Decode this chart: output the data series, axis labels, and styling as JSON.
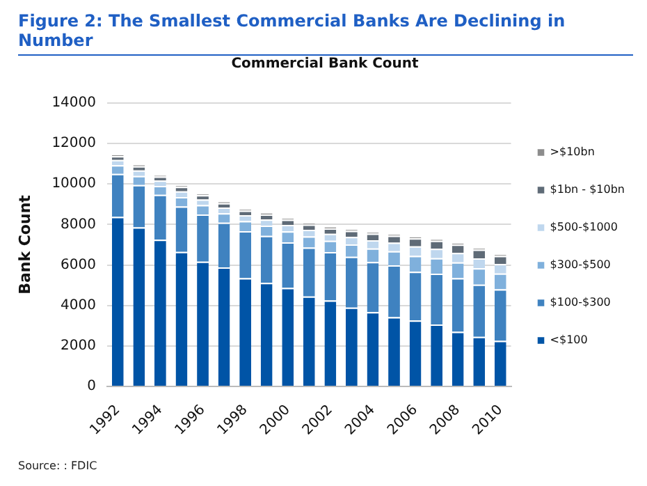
{
  "chart_data": {
    "type": "bar",
    "stacked": true,
    "title": "Figure 2: The Smallest Commercial Banks Are Declining in Number",
    "subtitle": "Commercial Bank Count",
    "ylabel": "Bank Count",
    "categories": [
      "1992",
      null,
      "1994",
      null,
      "1996",
      null,
      "1998",
      null,
      "2000",
      null,
      "2002",
      null,
      "2004",
      null,
      "2006",
      null,
      "2008",
      null,
      "2010"
    ],
    "series": [
      {
        "name": "<$100",
        "color": "#0054a6",
        "values": [
          8380,
          7860,
          7250,
          6650,
          6170,
          5880,
          5350,
          5120,
          4870,
          4450,
          4250,
          3900,
          3670,
          3420,
          3260,
          3060,
          2700,
          2450,
          2250
        ]
      },
      {
        "name": "$100-$300",
        "color": "#3f82c0",
        "values": [
          2120,
          2090,
          2220,
          2240,
          2330,
          2210,
          2320,
          2320,
          2250,
          2410,
          2390,
          2510,
          2480,
          2570,
          2410,
          2510,
          2650,
          2580,
          2550
        ]
      },
      {
        "name": "$300-$500",
        "color": "#7fb0dc",
        "values": [
          430,
          450,
          440,
          470,
          460,
          470,
          500,
          510,
          540,
          550,
          560,
          610,
          670,
          690,
          780,
          770,
          780,
          810,
          780
        ]
      },
      {
        "name": "$500-$1000",
        "color": "#bfd7ee",
        "values": [
          260,
          270,
          260,
          280,
          280,
          280,
          290,
          300,
          320,
          330,
          340,
          370,
          400,
          420,
          470,
          460,
          470,
          490,
          470
        ]
      },
      {
        "name": "$1bn - $10bn",
        "color": "#5f6b77",
        "values": [
          190,
          210,
          200,
          220,
          210,
          220,
          230,
          250,
          260,
          260,
          270,
          300,
          330,
          350,
          400,
          400,
          410,
          430,
          400
        ]
      },
      {
        "name": ">$10bn",
        "color": "#8c8c8c",
        "values": [
          80,
          80,
          80,
          80,
          80,
          80,
          80,
          80,
          80,
          80,
          80,
          80,
          80,
          80,
          80,
          80,
          80,
          80,
          80
        ]
      }
    ],
    "ylim": [
      0,
      14000
    ],
    "yticks": [
      0,
      2000,
      4000,
      6000,
      8000,
      10000,
      12000,
      14000
    ],
    "grid": "y",
    "legend": "right",
    "annotations": [
      "Source: : FDIC"
    ]
  }
}
